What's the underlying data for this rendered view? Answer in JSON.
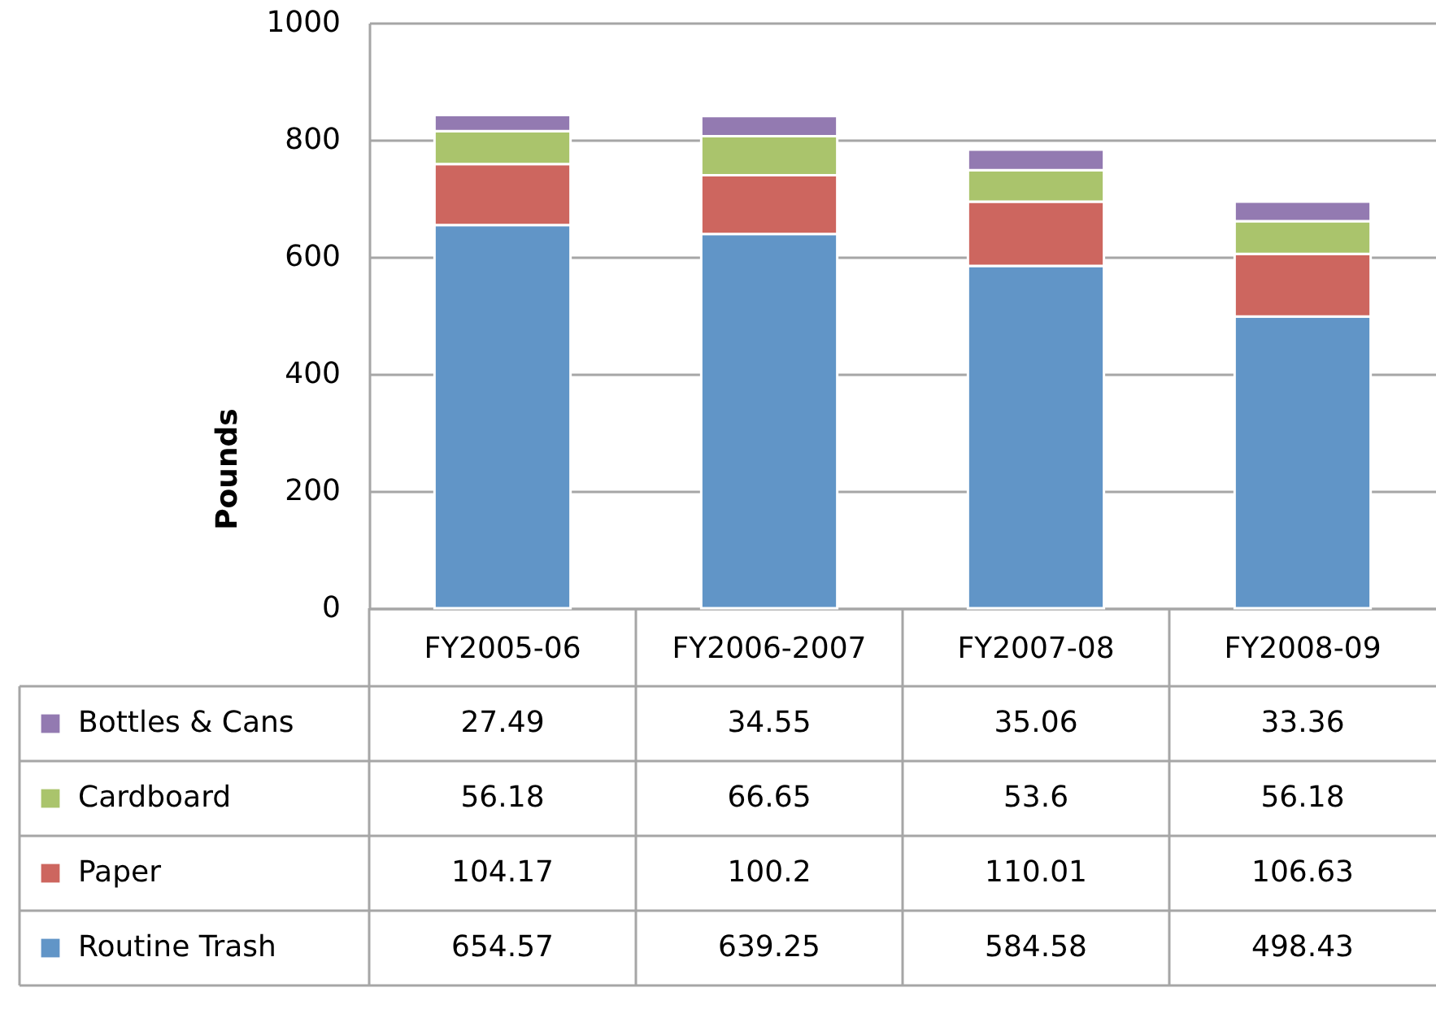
{
  "chart_data": {
    "type": "bar",
    "stacked": true,
    "ylabel": "Pounds",
    "categories": [
      "FY2005-06",
      "FY2006-2007",
      "FY2007-08",
      "FY2008-09"
    ],
    "series": [
      {
        "name": "Routine Trash",
        "color": "#6195c7",
        "values": [
          654.57,
          639.25,
          584.58,
          498.43
        ]
      },
      {
        "name": "Paper",
        "color": "#cd665f",
        "values": [
          104.17,
          100.2,
          110.01,
          106.63
        ]
      },
      {
        "name": "Cardboard",
        "color": "#aac46c",
        "values": [
          56.18,
          66.65,
          53.6,
          56.18
        ]
      },
      {
        "name": "Bottles & Cans",
        "color": "#937ab1",
        "values": [
          27.49,
          34.55,
          35.06,
          33.36
        ]
      }
    ],
    "ylim": [
      0,
      1000
    ],
    "yticks": [
      0,
      200,
      400,
      600,
      800,
      1000
    ],
    "grid": "y",
    "legend": "bottom left",
    "data_labels": true
  }
}
